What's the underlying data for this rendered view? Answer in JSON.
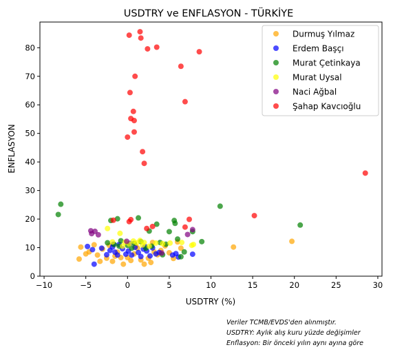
{
  "chart_data": {
    "type": "scatter",
    "title": "USDTRY ve ENFLASYON - TÜRKİYE",
    "xlabel": "USDTRY (%)",
    "ylabel": "ENFLASYON",
    "xlim": [
      -10.5,
      30.5
    ],
    "ylim": [
      0,
      89
    ],
    "xticks": [
      -10,
      -5,
      0,
      5,
      10,
      15,
      20,
      25,
      30
    ],
    "yticks": [
      0,
      10,
      20,
      30,
      40,
      50,
      60,
      70,
      80
    ],
    "grid": false,
    "legend_position": "top-right",
    "series": [
      {
        "name": "Durmuş Yılmaz",
        "color": "#FFA500",
        "points": [
          [
            -5.8,
            6
          ],
          [
            -5.6,
            10.2
          ],
          [
            -5,
            7.8
          ],
          [
            -4.6,
            8.5
          ],
          [
            -4,
            11
          ],
          [
            -3.6,
            7.4
          ],
          [
            -3.3,
            5.2
          ],
          [
            -3,
            9.5
          ],
          [
            -2.5,
            6.3
          ],
          [
            -2.2,
            10.8
          ],
          [
            -1.8,
            5.2
          ],
          [
            -1.5,
            7
          ],
          [
            -1.2,
            8.4
          ],
          [
            -0.8,
            6.5
          ],
          [
            -0.5,
            4.2
          ],
          [
            0,
            6.5
          ],
          [
            0.4,
            5.5
          ],
          [
            0.8,
            7.8
          ],
          [
            1.2,
            9.8
          ],
          [
            1.6,
            5.7
          ],
          [
            2,
            4.2
          ],
          [
            2.5,
            6.3
          ],
          [
            2.8,
            4.8
          ],
          [
            3.2,
            8.5
          ],
          [
            3.6,
            7.5
          ],
          [
            4,
            9
          ],
          [
            4.5,
            10.6
          ],
          [
            5,
            8.2
          ],
          [
            5.5,
            6.2
          ],
          [
            6,
            12
          ],
          [
            6.4,
            9.8
          ],
          [
            12.7,
            10.2
          ],
          [
            19.7,
            12.2
          ],
          [
            3,
            11.8
          ],
          [
            1,
            10.5
          ]
        ]
      },
      {
        "name": "Erdem Başçı",
        "color": "#0000FF",
        "points": [
          [
            -4,
            4.2
          ],
          [
            -4.8,
            10.4
          ],
          [
            -4.2,
            9.3
          ],
          [
            -2.5,
            7.5
          ],
          [
            -2.1,
            9
          ],
          [
            -1.8,
            10.2
          ],
          [
            -1.5,
            8.4
          ],
          [
            -1.2,
            7.4
          ],
          [
            -1,
            11.1
          ],
          [
            -0.6,
            9.6
          ],
          [
            -0.2,
            7.7
          ],
          [
            0.1,
            8.8
          ],
          [
            0.5,
            7.4
          ],
          [
            0.9,
            10.1
          ],
          [
            1.3,
            8.3
          ],
          [
            1.6,
            6.9
          ],
          [
            1.9,
            9.5
          ],
          [
            2.3,
            8.8
          ],
          [
            2.7,
            7.1
          ],
          [
            3,
            9.9
          ],
          [
            3.4,
            7.8
          ],
          [
            3.8,
            8.3
          ],
          [
            5.4,
            7.4
          ],
          [
            5.8,
            7.9
          ],
          [
            6.1,
            6.7
          ],
          [
            7.8,
            7.7
          ],
          [
            -1.7,
            11.2
          ],
          [
            0.3,
            11.5
          ],
          [
            2.1,
            10.4
          ],
          [
            -3.1,
            9.8
          ]
        ]
      },
      {
        "name": "Murat Çetinkaya",
        "color": "#008000",
        "points": [
          [
            -8.3,
            21.6
          ],
          [
            -8,
            25.2
          ],
          [
            -2,
            19.5
          ],
          [
            -1.2,
            20.1
          ],
          [
            -2.4,
            11.7
          ],
          [
            -1.6,
            11.1
          ],
          [
            -0.8,
            12.4
          ],
          [
            0,
            10.8
          ],
          [
            0.8,
            11.5
          ],
          [
            1.3,
            20.4
          ],
          [
            1.6,
            12.1
          ],
          [
            2.2,
            9.8
          ],
          [
            2.6,
            15.8
          ],
          [
            2.9,
            10.5
          ],
          [
            3.5,
            18.2
          ],
          [
            3.9,
            11.8
          ],
          [
            4.6,
            11.2
          ],
          [
            5,
            15.6
          ],
          [
            5.6,
            19.5
          ],
          [
            5.7,
            18.5
          ],
          [
            6,
            13
          ],
          [
            6.4,
            6.8
          ],
          [
            6.8,
            8.5
          ],
          [
            7.8,
            15.6
          ],
          [
            8.9,
            12.1
          ],
          [
            11.1,
            24.5
          ],
          [
            20.7,
            17.9
          ],
          [
            -1,
            10.5
          ],
          [
            0.5,
            9.8
          ],
          [
            4.2,
            7.5
          ]
        ]
      },
      {
        "name": "Murat Uysal",
        "color": "#FFFF00",
        "points": [
          [
            -2.4,
            16.7
          ],
          [
            -1.8,
            12
          ],
          [
            -0.9,
            15
          ],
          [
            -0.3,
            11.9
          ],
          [
            0.2,
            11.3
          ],
          [
            0.7,
            12.3
          ],
          [
            1.1,
            11.7
          ],
          [
            1.5,
            12.5
          ],
          [
            2,
            11.8
          ],
          [
            2.6,
            10.5
          ],
          [
            3.4,
            11.6
          ],
          [
            4.2,
            11.4
          ],
          [
            5.1,
            11.6
          ],
          [
            6.5,
            11.8
          ],
          [
            7.7,
            10.8
          ],
          [
            7.9,
            11.1
          ],
          [
            -0.6,
            10.5
          ],
          [
            1.8,
            10.9
          ]
        ]
      },
      {
        "name": "Naci Ağbal",
        "color": "#800080",
        "points": [
          [
            -4.4,
            15.9
          ],
          [
            -4.3,
            14.9
          ],
          [
            -3.9,
            15.7
          ],
          [
            -3.5,
            14.5
          ],
          [
            7.2,
            14.6
          ],
          [
            7.8,
            16.3
          ],
          [
            -0.1,
            12.2
          ],
          [
            4.1,
            8.1
          ]
        ]
      },
      {
        "name": "Şahap Kavcıoğlu",
        "color": "#FF0000",
        "points": [
          [
            0.2,
            84.4
          ],
          [
            1.5,
            85.6
          ],
          [
            1.6,
            83.4
          ],
          [
            2.4,
            79.6
          ],
          [
            3.5,
            80.2
          ],
          [
            8.6,
            78.6
          ],
          [
            6.4,
            73.5
          ],
          [
            0.9,
            70
          ],
          [
            6.9,
            61.1
          ],
          [
            0.3,
            64.3
          ],
          [
            0.7,
            57.7
          ],
          [
            0.4,
            55.2
          ],
          [
            0.8,
            54.5
          ],
          [
            0.8,
            50.5
          ],
          [
            0,
            48.7
          ],
          [
            1.8,
            43.6
          ],
          [
            2,
            39.5
          ],
          [
            28.5,
            36.1
          ],
          [
            15.2,
            21.2
          ],
          [
            7.4,
            19.9
          ],
          [
            0.2,
            19.1
          ],
          [
            0.4,
            19.8
          ],
          [
            3,
            17.4
          ],
          [
            2.3,
            16.7
          ],
          [
            6.9,
            17.2
          ],
          [
            -1.7,
            19.6
          ]
        ]
      }
    ]
  },
  "footnote": {
    "line1": "Veriler TCMB/EVDS'den alınmıştır.",
    "line2": "USDTRY: Aylık alış kuru yüzde değişimler",
    "line3": "Enflasyon: Bir önceki yılın aynı ayına göre"
  }
}
